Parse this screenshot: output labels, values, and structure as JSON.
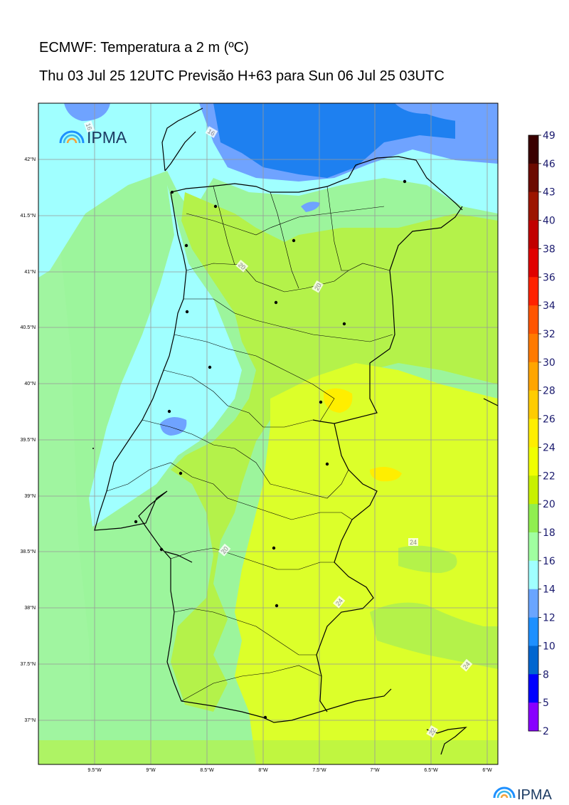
{
  "title": "ECMWF: Temperatura a 2 m (ºC)",
  "subtitle": "Thu 03 Jul 25 12UTC Previsão H+63 para Sun 06 Jul 25 03UTC",
  "logo_text": "IPMA",
  "footer_logo_text": "IPMA",
  "lat_labels": [
    "42°N",
    "41.5°N",
    "41°N",
    "40.5°N",
    "40°N",
    "39.5°N",
    "39°N",
    "38.5°N",
    "38°N",
    "37.5°N",
    "37°N"
  ],
  "lon_labels": [
    "9.5°W",
    "9°W",
    "8.5°W",
    "8°W",
    "7.5°W",
    "7°W",
    "6.5°W",
    "6°W"
  ],
  "colorbar": {
    "labels": [
      "49",
      "46",
      "43",
      "40",
      "38",
      "36",
      "34",
      "32",
      "30",
      "28",
      "26",
      "24",
      "22",
      "20",
      "18",
      "16",
      "14",
      "12",
      "10",
      "8",
      "5",
      "2"
    ],
    "colors": [
      "#3a0000",
      "#6b0a00",
      "#9c1500",
      "#c10000",
      "#e00000",
      "#ff2200",
      "#ff5500",
      "#ff7a00",
      "#ffa500",
      "#ffcc00",
      "#ffee00",
      "#f0ff00",
      "#c8f000",
      "#90ee50",
      "#a0ffa0",
      "#a0ffff",
      "#6aa5ff",
      "#1e90ff",
      "#0066d0",
      "#0000ff",
      "#8800ff",
      "#ee00ee"
    ]
  },
  "contour_labels": [
    "16",
    "16",
    "20",
    "20",
    "20",
    "24",
    "24",
    "24",
    "22"
  ]
}
